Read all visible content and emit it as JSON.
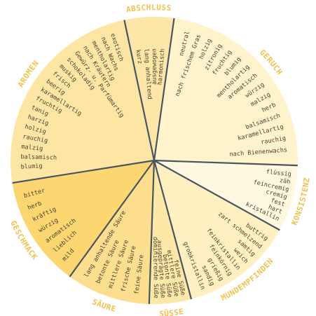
{
  "colors": {
    "divider": "#4a5560",
    "label": "#f2c14e",
    "text": "#4b4332"
  },
  "sections": [
    {
      "name": "ABSCHLUSS",
      "color": "#fde7a8",
      "words": [
        "kurz",
        "lang anhaltend",
        "ausgewogen",
        "harmonisch"
      ]
    },
    {
      "name": "GERUCH",
      "color": "#fff3cc",
      "words": [
        "neutral",
        "nach frischem Gras",
        "holzig",
        "zitronig",
        "fruchtig",
        "blumig",
        "mentholartig",
        "aromatisch",
        "würzig",
        "malzig",
        "herb",
        "balsamisch",
        "karamellartig",
        "rauchig",
        "nach Bienenwachs"
      ]
    },
    {
      "name": "KONSISTENZ",
      "color": "#fff8e1",
      "words": [
        "flüssig",
        "zäh",
        "feincremig",
        "cremig",
        "fest",
        "hart",
        "kristallin"
      ]
    },
    {
      "name": "MUNDEMPFINDEN",
      "color": "#fff0c2",
      "words": [
        "buttrig",
        "zart schmelzend",
        "samtig",
        "weich",
        "feinkristallin",
        "feinkörnig",
        "grießig",
        "sandig",
        "grobkristallin"
      ]
    },
    {
      "name": "SÜSSE",
      "color": "#fde8a8",
      "words": [
        "feine Süße",
        "mittlere Süße",
        "betonte Süße",
        "ausgeprägte Süße",
        "dominierende Süße"
      ]
    },
    {
      "name": "SÄURE",
      "color": "#fddd8e",
      "words": [
        "feine Säure",
        "frische Säure",
        "mittlere Säure",
        "betonte Säure",
        "lang anhaltende Säure"
      ]
    },
    {
      "name": "GESCHMACK",
      "color": "#fcd670",
      "words": [
        "mild",
        "lieblich",
        "aromatisch",
        "würzig",
        "kräftig",
        "herb",
        "bitter"
      ]
    },
    {
      "name": "AROMEN",
      "color": "#fde6a4",
      "words": [
        "blumig",
        "balsamisch",
        "malzig",
        "rauchig",
        "holzig",
        "harzig",
        "tanig",
        "fruchtig",
        "karamellartig",
        "beerig",
        "frisch",
        "muskig",
        "schokoladig",
        "Gewürz- u. Parfümartig",
        "nach Kräutern",
        "mentholartig",
        "nach Wachs",
        "exotisch"
      ]
    }
  ]
}
